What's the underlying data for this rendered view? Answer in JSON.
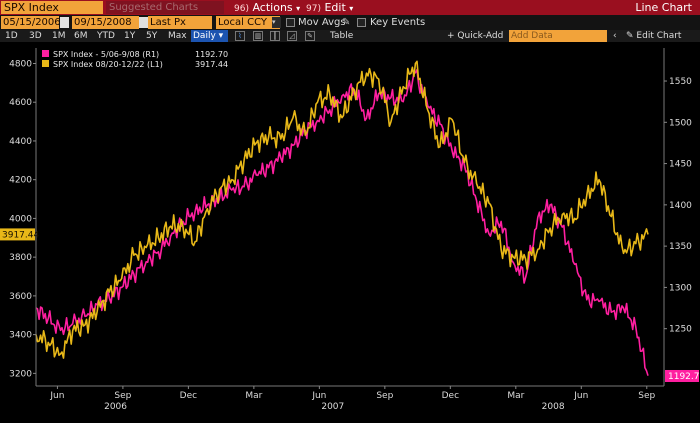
{
  "toolbar": {
    "security": "SPX Index",
    "suggested_charts": "Suggested Charts",
    "actions_num": "96)",
    "actions": "Actions",
    "edit_num": "97)",
    "edit": "Edit",
    "chart_title": "Line Chart"
  },
  "controls": {
    "start_date": "05/15/2006",
    "end_date": "09/15/2008",
    "field": "Last Px",
    "currency": "Local CCY",
    "mov_avgs": "Mov Avgs",
    "key_events": "Key Events"
  },
  "periods": [
    "1D",
    "3D",
    "1M",
    "6M",
    "YTD",
    "1Y",
    "5Y",
    "Max"
  ],
  "frequency": "Daily",
  "table_label": "Table",
  "quick_add": "Quick-Add",
  "add_data_placeholder": "Add Data",
  "edit_chart": "Edit Chart",
  "colors": {
    "series_r1": "#ff1fa0",
    "series_l1": "#e8b818",
    "accent": "#f2a33a",
    "header_bg": "#9a0f1f"
  },
  "chart_data": {
    "type": "line",
    "legend": [
      {
        "label": "SPX Index - 5/06-9/08 (R1)",
        "value": "1192.70"
      },
      {
        "label": "SPX Index 08/20-12/22 (L1)",
        "value": "3917.44"
      }
    ],
    "left_axis": {
      "ticks": [
        3200,
        3400,
        3600,
        3800,
        4000,
        4200,
        4400,
        4600,
        4800
      ],
      "range": [
        3145,
        4880
      ],
      "last_value": "3917.44"
    },
    "right_axis": {
      "ticks": [
        1250,
        1300,
        1350,
        1400,
        1450,
        1500,
        1550
      ],
      "range": [
        1183,
        1590
      ],
      "last_value": "1192.70"
    },
    "x_months": [
      "Jun",
      "Sep",
      "Dec",
      "Mar",
      "Jun",
      "Sep",
      "Dec",
      "Mar",
      "Jun",
      "Sep"
    ],
    "x_years": [
      "2006",
      "2007",
      "2008"
    ],
    "series": [
      {
        "name": "SPX Index - 5/06-9/08 (R1)",
        "axis": "right",
        "x": [
          0,
          0.02,
          0.04,
          0.06,
          0.08,
          0.1,
          0.12,
          0.14,
          0.16,
          0.18,
          0.2,
          0.22,
          0.24,
          0.26,
          0.28,
          0.3,
          0.32,
          0.34,
          0.36,
          0.38,
          0.4,
          0.42,
          0.44,
          0.46,
          0.48,
          0.5,
          0.52,
          0.54,
          0.56,
          0.58,
          0.6,
          0.62,
          0.64,
          0.66,
          0.68,
          0.7,
          0.72,
          0.74,
          0.76,
          0.78,
          0.8,
          0.82,
          0.84,
          0.86,
          0.88,
          0.9,
          0.92,
          0.94,
          0.96,
          0.98,
          1
        ],
        "values": [
          1275,
          1262,
          1248,
          1256,
          1265,
          1279,
          1287,
          1300,
          1316,
          1331,
          1343,
          1362,
          1380,
          1392,
          1400,
          1408,
          1418,
          1422,
          1436,
          1445,
          1457,
          1472,
          1490,
          1502,
          1515,
          1532,
          1540,
          1505,
          1535,
          1530,
          1525,
          1560,
          1520,
          1498,
          1465,
          1448,
          1405,
          1365,
          1380,
          1330,
          1312,
          1385,
          1400,
          1373,
          1328,
          1285,
          1283,
          1270,
          1275,
          1252,
          1193
        ]
      },
      {
        "name": "SPX Index 08/20-12/22 (L1)",
        "axis": "left",
        "x": [
          0,
          0.02,
          0.04,
          0.06,
          0.08,
          0.1,
          0.12,
          0.14,
          0.16,
          0.18,
          0.2,
          0.22,
          0.24,
          0.26,
          0.28,
          0.3,
          0.32,
          0.34,
          0.36,
          0.38,
          0.4,
          0.42,
          0.44,
          0.46,
          0.48,
          0.5,
          0.52,
          0.54,
          0.56,
          0.58,
          0.6,
          0.62,
          0.64,
          0.66,
          0.68,
          0.7,
          0.72,
          0.74,
          0.76,
          0.78,
          0.8,
          0.82,
          0.84,
          0.86,
          0.88,
          0.9,
          0.92,
          0.94,
          0.96,
          0.98,
          1
        ],
        "values": [
          3400,
          3360,
          3300,
          3420,
          3450,
          3520,
          3620,
          3690,
          3810,
          3850,
          3900,
          3960,
          3960,
          3880,
          4050,
          4150,
          4200,
          4300,
          4390,
          4420,
          4410,
          4520,
          4430,
          4600,
          4640,
          4520,
          4660,
          4750,
          4720,
          4500,
          4680,
          4800,
          4560,
          4370,
          4510,
          4290,
          4180,
          4080,
          3840,
          3800,
          3790,
          3840,
          3950,
          4020,
          4000,
          4120,
          4200,
          4010,
          3820,
          3870,
          3917.44
        ]
      }
    ]
  }
}
